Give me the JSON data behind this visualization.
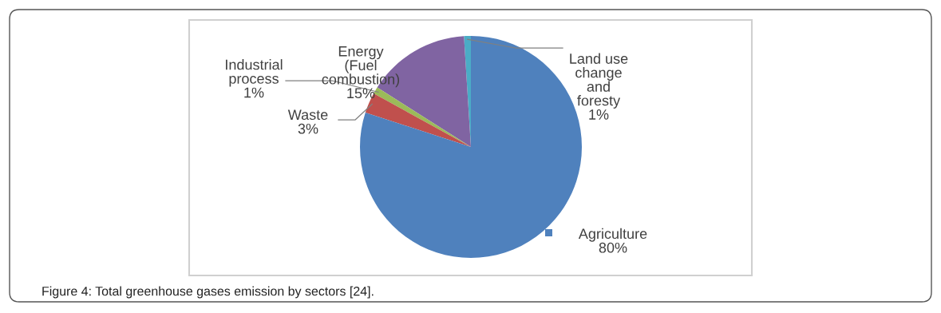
{
  "chart_data": {
    "type": "pie",
    "categories": [
      "Land use change and foresty",
      "Energy (Fuel combustion)",
      "Industrial process",
      "Waste",
      "Agriculture"
    ],
    "values": [
      1,
      15,
      1,
      3,
      80
    ],
    "colors": [
      "#4bacc6",
      "#8064a2",
      "#9bbb59",
      "#c0504d",
      "#4f81bd"
    ],
    "value_labels": [
      "1%",
      "15%",
      "1%",
      "3%",
      "80%"
    ],
    "annotations": [
      "Figure 4: Total greenhouse gases emission by sectors [24]."
    ]
  }
}
